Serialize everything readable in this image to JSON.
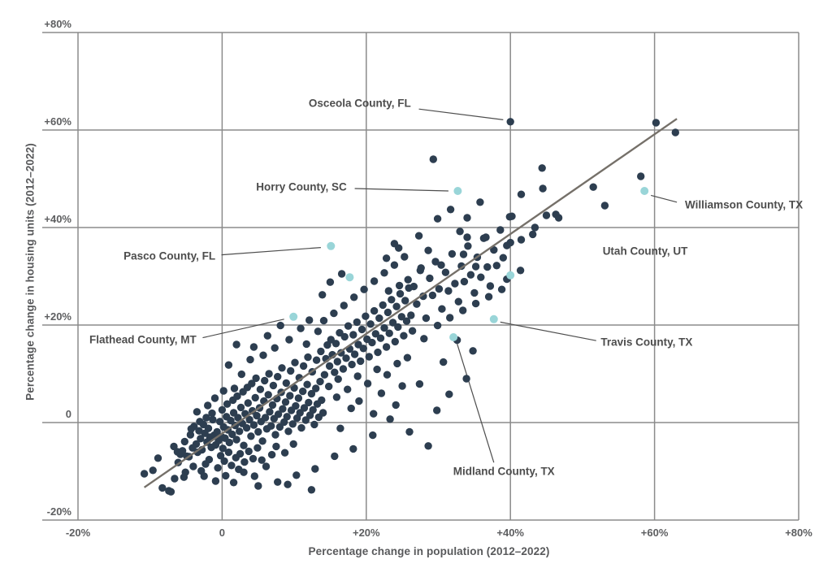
{
  "chart_data": {
    "type": "scatter",
    "title": "",
    "xlabel": "Percentage change in population (2012–2022)",
    "ylabel": "Percentage change in housing units (2012–2022)",
    "xlim": [
      -20,
      80
    ],
    "ylim": [
      -20,
      80
    ],
    "grid": true,
    "legend": "none",
    "colors": {
      "point": "#2d3e50",
      "highlight": "#99d5d8",
      "grid": "#8b8b8b",
      "trend": "#757069",
      "leader": "#4d4d4d",
      "tick_text": "#5d5e60",
      "label_text": "#4d4d4d"
    },
    "x_ticks": [
      {
        "v": -20,
        "label": "-20%"
      },
      {
        "v": 0,
        "label": "0"
      },
      {
        "v": 20,
        "label": "+20%"
      },
      {
        "v": 40,
        "label": "+40%"
      },
      {
        "v": 60,
        "label": "+60%"
      },
      {
        "v": 80,
        "label": "+80%"
      }
    ],
    "y_ticks": [
      {
        "v": -20,
        "label": "-20%"
      },
      {
        "v": 0,
        "label": "0"
      },
      {
        "v": 20,
        "label": "+20%"
      },
      {
        "v": 40,
        "label": "+40%"
      },
      {
        "v": 60,
        "label": "+60%"
      },
      {
        "v": 80,
        "label": "+80%"
      }
    ],
    "trend_line": {
      "x1": -10.8,
      "y1": -13.3,
      "x2": 63.1,
      "y2": 62.3
    },
    "annotations": [
      {
        "label": "Osceola County, FL",
        "x": 19.1,
        "y": 65.5,
        "leader": [
          [
            27.3,
            64.3
          ],
          [
            39.0,
            62.1
          ]
        ]
      },
      {
        "label": "Horry County, SC",
        "x": 11.0,
        "y": 48.3,
        "leader": [
          [
            18.4,
            48.0
          ],
          [
            31.4,
            47.5
          ]
        ]
      },
      {
        "label": "Pasco County, FL",
        "x": -7.3,
        "y": 34.2,
        "leader": [
          [
            -0.1,
            34.4
          ],
          [
            13.7,
            35.9
          ]
        ]
      },
      {
        "label": "Flathead County, MT",
        "x": -11.0,
        "y": 17.0,
        "leader": [
          [
            -2.7,
            17.4
          ],
          [
            8.6,
            21.2
          ]
        ]
      },
      {
        "label": "Williamson County, TX",
        "x": 72.4,
        "y": 44.7,
        "leader": [
          [
            63.1,
            45.2
          ],
          [
            59.5,
            46.6
          ]
        ]
      },
      {
        "label": "Utah County, UT",
        "x": 58.7,
        "y": 35.2,
        "leader": []
      },
      {
        "label": "Travis County, TX",
        "x": 58.9,
        "y": 16.5,
        "leader": [
          [
            51.9,
            16.8
          ],
          [
            38.6,
            20.6
          ]
        ]
      },
      {
        "label": "Midland County, TX",
        "x": 39.1,
        "y": -10.0,
        "leader": [
          [
            37.7,
            -8.2
          ],
          [
            32.6,
            16.2
          ]
        ]
      }
    ],
    "highlighted_points": [
      [
        9.9,
        21.7
      ],
      [
        15.1,
        36.2
      ],
      [
        17.7,
        29.8
      ],
      [
        32.1,
        17.5
      ],
      [
        32.7,
        47.5
      ],
      [
        37.7,
        21.2
      ],
      [
        40.0,
        30.2
      ],
      [
        58.6,
        47.5
      ]
    ],
    "points": [
      [
        -10.8,
        -10.5
      ],
      [
        -7.4,
        -14.0
      ],
      [
        -7.1,
        -14.2
      ],
      [
        -5.1,
        -10.2
      ],
      [
        -4.6,
        -7.0
      ],
      [
        -6.2,
        -6.0
      ],
      [
        -2.3,
        -8.5
      ],
      [
        -0.9,
        -12.0
      ],
      [
        1.6,
        -12.3
      ],
      [
        3.0,
        -10.2
      ],
      [
        -8.9,
        -7.3
      ],
      [
        -9.6,
        -9.8
      ],
      [
        -6.6,
        -11.5
      ],
      [
        -8.3,
        -13.4
      ],
      [
        -5.3,
        -11.2
      ],
      [
        -4.0,
        -9.0
      ],
      [
        -2.9,
        -9.9
      ],
      [
        -1.8,
        -7.6
      ],
      [
        -0.6,
        -9.3
      ],
      [
        0.5,
        -10.9
      ],
      [
        2.3,
        -9.6
      ],
      [
        4.5,
        -11.0
      ],
      [
        6.1,
        -9.0
      ],
      [
        5.0,
        -13.0
      ],
      [
        7.7,
        -12.2
      ],
      [
        9.1,
        -12.7
      ],
      [
        10.3,
        -10.8
      ],
      [
        12.4,
        -13.8
      ],
      [
        12.9,
        -9.5
      ],
      [
        15.6,
        -6.9
      ],
      [
        -5.8,
        -6.5
      ],
      [
        -5.2,
        -3.9
      ],
      [
        -4.9,
        -6.9
      ],
      [
        -4.4,
        -2.5
      ],
      [
        -4.1,
        -5.2
      ],
      [
        -3.9,
        -0.8
      ],
      [
        -3.6,
        -4.4
      ],
      [
        -3.4,
        -6.1
      ],
      [
        -3.2,
        -1.7
      ],
      [
        -3.0,
        -3.3
      ],
      [
        -2.8,
        -5.6
      ],
      [
        -2.6,
        -0.4
      ],
      [
        -2.4,
        -2.2
      ],
      [
        -2.1,
        -4.0
      ],
      [
        -1.9,
        -1.2
      ],
      [
        -1.7,
        -3.0
      ],
      [
        -1.5,
        -5.1
      ],
      [
        -1.3,
        0.6
      ],
      [
        -1.1,
        -2.6
      ],
      [
        -0.9,
        -4.6
      ],
      [
        -0.7,
        -1.9
      ],
      [
        -0.5,
        -3.7
      ],
      [
        -0.3,
        0.2
      ],
      [
        -0.1,
        -2.9
      ],
      [
        0.1,
        -5.3
      ],
      [
        0.2,
        -0.9
      ],
      [
        0.4,
        -3.2
      ],
      [
        0.6,
        1.2
      ],
      [
        0.8,
        -1.5
      ],
      [
        1.0,
        -4.1
      ],
      [
        1.2,
        0.4
      ],
      [
        1.4,
        -2.4
      ],
      [
        1.6,
        2.0
      ],
      [
        1.8,
        -0.6
      ],
      [
        2.0,
        -3.5
      ],
      [
        2.2,
        1.0
      ],
      [
        2.4,
        -1.8
      ],
      [
        2.6,
        3.1
      ],
      [
        2.8,
        -0.2
      ],
      [
        3.0,
        -4.7
      ],
      [
        3.2,
        1.8
      ],
      [
        3.4,
        -1.1
      ],
      [
        3.6,
        4.0
      ],
      [
        3.8,
        0.6
      ],
      [
        4.0,
        -2.8
      ],
      [
        4.2,
        2.4
      ],
      [
        4.4,
        -0.5
      ],
      [
        4.6,
        5.1
      ],
      [
        4.8,
        1.4
      ],
      [
        5.0,
        -1.9
      ],
      [
        5.2,
        3.0
      ],
      [
        5.4,
        0.2
      ],
      [
        5.6,
        -3.8
      ],
      [
        5.8,
        4.4
      ],
      [
        6.0,
        1.0
      ],
      [
        6.2,
        -1.3
      ],
      [
        6.4,
        5.7
      ],
      [
        6.6,
        2.2
      ],
      [
        6.8,
        -0.7
      ],
      [
        7.0,
        3.6
      ],
      [
        7.2,
        0.8
      ],
      [
        7.4,
        -2.5
      ],
      [
        7.6,
        4.9
      ],
      [
        7.8,
        1.7
      ],
      [
        8.0,
        -0.9
      ],
      [
        8.2,
        6.2
      ],
      [
        8.4,
        2.8
      ],
      [
        8.6,
        0.1
      ],
      [
        8.8,
        4.2
      ],
      [
        9.0,
        1.2
      ],
      [
        9.2,
        -1.8
      ],
      [
        9.4,
        5.5
      ],
      [
        9.6,
        2.5
      ],
      [
        9.8,
        -0.3
      ],
      [
        10.0,
        7.1
      ],
      [
        10.2,
        3.4
      ],
      [
        10.4,
        0.9
      ],
      [
        10.6,
        5.0
      ],
      [
        10.8,
        2.0
      ],
      [
        11.0,
        -1.1
      ],
      [
        11.2,
        6.4
      ],
      [
        11.4,
        3.0
      ],
      [
        11.6,
        0.5
      ],
      [
        11.8,
        7.8
      ],
      [
        12.0,
        4.1
      ],
      [
        12.2,
        1.5
      ],
      [
        12.4,
        5.9
      ],
      [
        12.6,
        2.6
      ],
      [
        12.8,
        -0.4
      ],
      [
        13.0,
        7.0
      ],
      [
        13.2,
        3.8
      ],
      [
        13.4,
        1.1
      ],
      [
        13.6,
        8.4
      ],
      [
        13.8,
        4.6
      ],
      [
        14.0,
        2.0
      ],
      [
        -0.2,
        -6.8
      ],
      [
        0.3,
        -7.9
      ],
      [
        0.9,
        -6.1
      ],
      [
        1.3,
        -8.8
      ],
      [
        1.9,
        -7.2
      ],
      [
        2.5,
        -6.4
      ],
      [
        3.1,
        -8.1
      ],
      [
        3.7,
        -5.9
      ],
      [
        4.3,
        -7.4
      ],
      [
        4.9,
        -5.2
      ],
      [
        5.5,
        -7.7
      ],
      [
        6.9,
        -6.6
      ],
      [
        7.5,
        -4.9
      ],
      [
        8.7,
        -6.2
      ],
      [
        9.9,
        -4.4
      ],
      [
        0.0,
        2.6
      ],
      [
        0.7,
        3.8
      ],
      [
        1.5,
        4.6
      ],
      [
        2.1,
        5.4
      ],
      [
        2.9,
        6.3
      ],
      [
        3.5,
        7.2
      ],
      [
        4.1,
        8.0
      ],
      [
        4.7,
        9.1
      ],
      [
        5.3,
        6.8
      ],
      [
        5.9,
        8.6
      ],
      [
        6.5,
        10.0
      ],
      [
        7.1,
        7.6
      ],
      [
        7.7,
        9.4
      ],
      [
        8.3,
        11.2
      ],
      [
        8.9,
        8.1
      ],
      [
        9.5,
        10.6
      ],
      [
        10.1,
        12.3
      ],
      [
        10.7,
        9.2
      ],
      [
        11.3,
        11.6
      ],
      [
        11.9,
        13.4
      ],
      [
        12.5,
        10.4
      ],
      [
        13.1,
        12.8
      ],
      [
        13.7,
        14.6
      ],
      [
        -1.4,
        1.9
      ],
      [
        -2.2,
        1.0
      ],
      [
        -3.1,
        0.2
      ],
      [
        -4.3,
        -1.3
      ],
      [
        -5.5,
        -5.8
      ],
      [
        -6.1,
        -8.2
      ],
      [
        -6.7,
        -4.9
      ],
      [
        1.7,
        7.0
      ],
      [
        2.7,
        9.9
      ],
      [
        0.9,
        11.8
      ],
      [
        3.9,
        12.9
      ],
      [
        5.7,
        13.8
      ],
      [
        7.3,
        15.3
      ],
      [
        6.3,
        17.8
      ],
      [
        9.3,
        17.0
      ],
      [
        4.4,
        15.5
      ],
      [
        8.1,
        19.9
      ],
      [
        10.9,
        19.3
      ],
      [
        12.1,
        21.0
      ],
      [
        13.3,
        18.7
      ],
      [
        11.7,
        16.1
      ],
      [
        14.2,
        9.8
      ],
      [
        14.4,
        13.1
      ],
      [
        14.6,
        15.9
      ],
      [
        14.9,
        11.6
      ],
      [
        15.1,
        17.0
      ],
      [
        15.3,
        13.9
      ],
      [
        15.6,
        10.3
      ],
      [
        15.8,
        16.2
      ],
      [
        16.0,
        12.5
      ],
      [
        16.3,
        18.4
      ],
      [
        16.5,
        14.3
      ],
      [
        16.8,
        11.0
      ],
      [
        17.0,
        17.6
      ],
      [
        17.2,
        13.2
      ],
      [
        17.5,
        19.8
      ],
      [
        17.7,
        15.1
      ],
      [
        18.0,
        11.9
      ],
      [
        18.2,
        18.0
      ],
      [
        18.4,
        14.0
      ],
      [
        18.7,
        20.6
      ],
      [
        18.9,
        16.0
      ],
      [
        19.2,
        12.6
      ],
      [
        19.4,
        19.1
      ],
      [
        19.6,
        15.2
      ],
      [
        19.9,
        21.8
      ],
      [
        20.1,
        17.1
      ],
      [
        20.4,
        13.5
      ],
      [
        20.6,
        20.2
      ],
      [
        20.8,
        16.4
      ],
      [
        21.1,
        22.9
      ],
      [
        21.3,
        18.2
      ],
      [
        21.6,
        14.4
      ],
      [
        21.8,
        21.4
      ],
      [
        22.0,
        17.3
      ],
      [
        22.3,
        24.1
      ],
      [
        22.5,
        19.4
      ],
      [
        22.8,
        15.5
      ],
      [
        23.0,
        22.6
      ],
      [
        23.2,
        18.3
      ],
      [
        23.5,
        25.2
      ],
      [
        23.7,
        20.5
      ],
      [
        24.0,
        16.6
      ],
      [
        24.2,
        23.8
      ],
      [
        24.4,
        19.6
      ],
      [
        24.7,
        26.4
      ],
      [
        24.9,
        21.7
      ],
      [
        25.2,
        17.8
      ],
      [
        25.4,
        25.0
      ],
      [
        25.6,
        20.8
      ],
      [
        25.9,
        27.6
      ],
      [
        14.1,
        20.9
      ],
      [
        15.5,
        22.4
      ],
      [
        16.9,
        24.0
      ],
      [
        18.3,
        25.7
      ],
      [
        19.7,
        27.3
      ],
      [
        21.1,
        29.0
      ],
      [
        22.5,
        30.7
      ],
      [
        23.9,
        32.3
      ],
      [
        25.3,
        34.0
      ],
      [
        14.8,
        7.4
      ],
      [
        16.1,
        8.9
      ],
      [
        17.4,
        6.8
      ],
      [
        18.8,
        9.5
      ],
      [
        20.2,
        8.0
      ],
      [
        21.5,
        10.9
      ],
      [
        22.9,
        9.8
      ],
      [
        24.3,
        12.1
      ],
      [
        25.7,
        13.3
      ],
      [
        15.9,
        5.2
      ],
      [
        19.0,
        4.4
      ],
      [
        22.1,
        6.0
      ],
      [
        25.0,
        7.5
      ],
      [
        17.9,
        2.9
      ],
      [
        21.0,
        1.8
      ],
      [
        24.1,
        3.6
      ],
      [
        16.4,
        -1.2
      ],
      [
        20.9,
        -2.6
      ],
      [
        23.3,
        0.7
      ],
      [
        25.8,
        29.3
      ],
      [
        24.6,
        28.1
      ],
      [
        23.1,
        27.0
      ],
      [
        26.2,
        22.0
      ],
      [
        26.6,
        27.9
      ],
      [
        27.0,
        24.3
      ],
      [
        27.5,
        31.2
      ],
      [
        27.9,
        25.9
      ],
      [
        28.3,
        21.4
      ],
      [
        28.8,
        29.6
      ],
      [
        29.2,
        26.1
      ],
      [
        29.6,
        33.0
      ],
      [
        30.1,
        27.4
      ],
      [
        30.5,
        23.3
      ],
      [
        31.0,
        30.8
      ],
      [
        31.4,
        27.0
      ],
      [
        31.9,
        34.6
      ],
      [
        32.3,
        28.5
      ],
      [
        32.8,
        24.8
      ],
      [
        33.2,
        32.1
      ],
      [
        33.6,
        28.9
      ],
      [
        34.1,
        36.2
      ],
      [
        34.5,
        30.3
      ],
      [
        35.0,
        26.6
      ],
      [
        35.4,
        33.9
      ],
      [
        35.9,
        29.8
      ],
      [
        36.3,
        37.8
      ],
      [
        36.8,
        31.9
      ],
      [
        37.2,
        28.0
      ],
      [
        37.7,
        35.4
      ],
      [
        38.1,
        32.2
      ],
      [
        38.6,
        39.5
      ],
      [
        39.0,
        33.8
      ],
      [
        39.5,
        29.4
      ],
      [
        40.0,
        36.9
      ],
      [
        26.4,
        18.8
      ],
      [
        28.0,
        17.2
      ],
      [
        29.9,
        19.9
      ],
      [
        31.6,
        21.5
      ],
      [
        33.4,
        23.0
      ],
      [
        35.2,
        24.4
      ],
      [
        37.0,
        25.8
      ],
      [
        38.8,
        27.3
      ],
      [
        18.2,
        -5.4
      ],
      [
        28.6,
        -4.8
      ],
      [
        26.0,
        -1.9
      ],
      [
        29.8,
        2.5
      ],
      [
        31.5,
        5.8
      ],
      [
        33.9,
        9.0
      ],
      [
        30.7,
        12.4
      ],
      [
        34.8,
        14.7
      ],
      [
        27.4,
        7.9
      ],
      [
        32.6,
        16.9
      ],
      [
        15.0,
        28.8
      ],
      [
        16.6,
        30.5
      ],
      [
        13.9,
        26.2
      ],
      [
        22.8,
        33.7
      ],
      [
        27.3,
        38.3
      ],
      [
        29.9,
        41.8
      ],
      [
        24.5,
        35.8
      ],
      [
        31.7,
        43.7
      ],
      [
        35.8,
        45.2
      ],
      [
        33.0,
        39.2
      ],
      [
        29.3,
        54.0
      ],
      [
        34.0,
        42.0
      ],
      [
        39.9,
        42.2
      ],
      [
        36.6,
        38.0
      ],
      [
        39.5,
        36.3
      ],
      [
        34.0,
        38.0
      ],
      [
        33.5,
        34.5
      ],
      [
        35.2,
        32.0
      ],
      [
        30.4,
        32.3
      ],
      [
        27.6,
        31.7
      ],
      [
        28.6,
        35.3
      ],
      [
        23.9,
        36.7
      ],
      [
        41.5,
        37.5
      ],
      [
        41.4,
        31.2
      ],
      [
        40.2,
        42.3
      ],
      [
        43.4,
        40.0
      ],
      [
        45.0,
        42.5
      ],
      [
        46.7,
        42.0
      ],
      [
        44.4,
        52.2
      ],
      [
        51.5,
        48.3
      ],
      [
        53.1,
        44.5
      ],
      [
        58.1,
        50.5
      ],
      [
        40.0,
        61.7
      ],
      [
        60.2,
        61.5
      ],
      [
        62.9,
        59.5
      ],
      [
        44.5,
        48.0
      ],
      [
        41.5,
        46.8
      ],
      [
        43.1,
        38.6
      ],
      [
        46.3,
        42.7
      ],
      [
        2.0,
        16.0
      ],
      [
        -2.0,
        3.5
      ],
      [
        -3.5,
        2.2
      ],
      [
        -1.0,
        5.0
      ],
      [
        0.2,
        6.5
      ],
      [
        -2.5,
        -11.0
      ]
    ]
  }
}
